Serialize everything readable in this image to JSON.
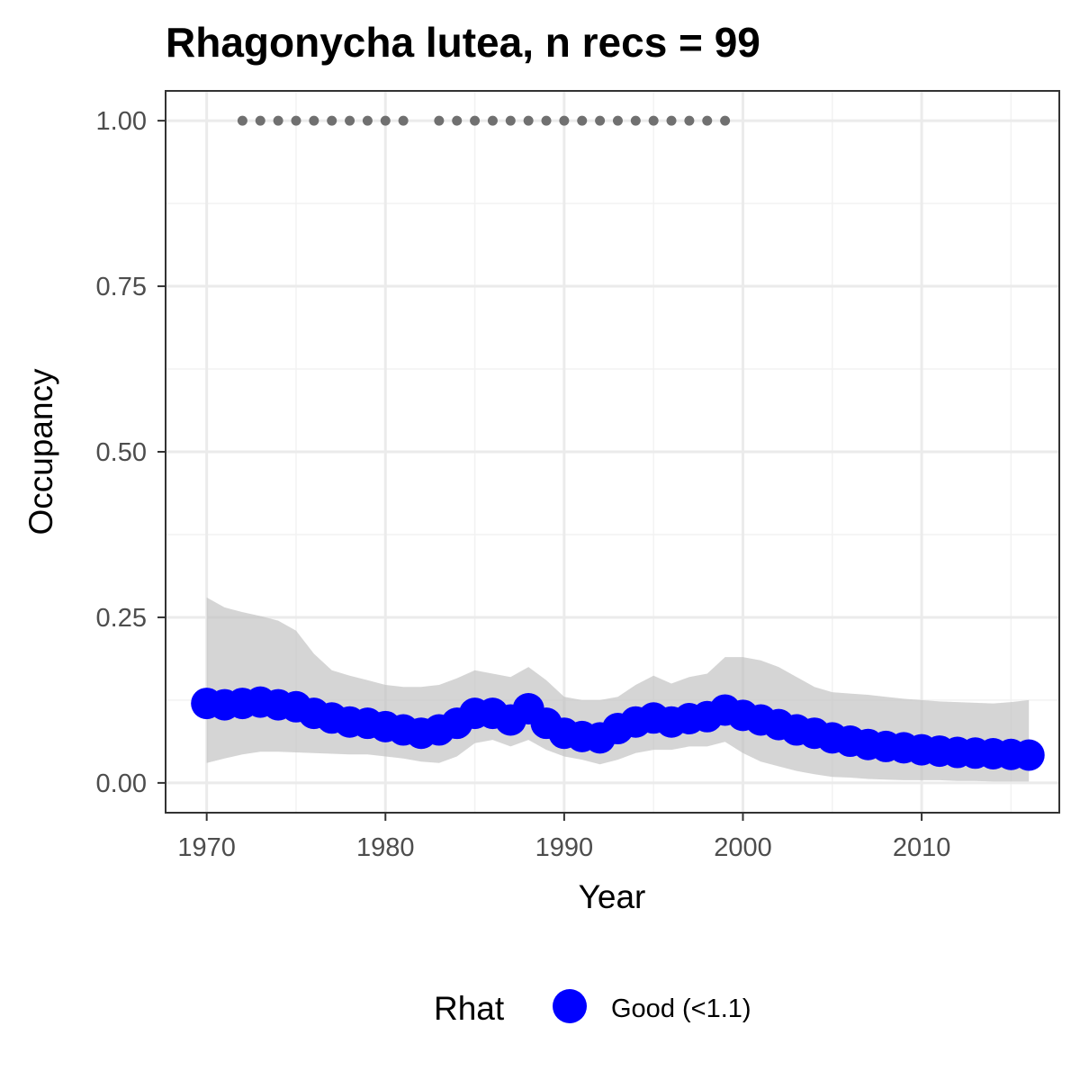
{
  "chart_data": {
    "type": "line",
    "title": "Rhagonycha lutea, n recs = 99",
    "xlabel": "Year",
    "ylabel": "Occupancy",
    "xlim": [
      1967.7,
      2017.7
    ],
    "ylim": [
      -0.045,
      1.045
    ],
    "x_ticks": [
      {
        "value": 1970,
        "label": "1970"
      },
      {
        "value": 1980,
        "label": "1980"
      },
      {
        "value": 1990,
        "label": "1990"
      },
      {
        "value": 2000,
        "label": "2000"
      },
      {
        "value": 2010,
        "label": "2010"
      }
    ],
    "y_ticks": [
      {
        "value": 0.0,
        "label": "0.00"
      },
      {
        "value": 0.25,
        "label": "0.25"
      },
      {
        "value": 0.5,
        "label": "0.50"
      },
      {
        "value": 0.75,
        "label": "0.75"
      },
      {
        "value": 1.0,
        "label": "1.00"
      }
    ],
    "grid": true,
    "legend": {
      "title": "Rhat",
      "position": "bottom",
      "entries": [
        {
          "label": "Good (<1.1)",
          "color": "#0000ff"
        }
      ]
    },
    "series": [
      {
        "name": "Good (<1.1)",
        "color": "#0000ff",
        "x": [
          1970,
          1971,
          1972,
          1973,
          1974,
          1975,
          1976,
          1977,
          1978,
          1979,
          1980,
          1981,
          1982,
          1983,
          1984,
          1985,
          1986,
          1987,
          1988,
          1989,
          1990,
          1991,
          1992,
          1993,
          1994,
          1995,
          1996,
          1997,
          1998,
          1999,
          2000,
          2001,
          2002,
          2003,
          2004,
          2005,
          2006,
          2007,
          2008,
          2009,
          2010,
          2011,
          2012,
          2013,
          2014,
          2015,
          2016
        ],
        "mean": [
          0.12,
          0.118,
          0.12,
          0.122,
          0.118,
          0.115,
          0.105,
          0.098,
          0.092,
          0.09,
          0.085,
          0.08,
          0.075,
          0.08,
          0.09,
          0.105,
          0.105,
          0.095,
          0.112,
          0.09,
          0.075,
          0.07,
          0.068,
          0.082,
          0.092,
          0.098,
          0.092,
          0.097,
          0.1,
          0.11,
          0.102,
          0.095,
          0.088,
          0.08,
          0.075,
          0.068,
          0.063,
          0.058,
          0.055,
          0.053,
          0.05,
          0.048,
          0.046,
          0.045,
          0.044,
          0.043,
          0.042
        ],
        "lower": [
          0.03,
          0.037,
          0.043,
          0.047,
          0.047,
          0.046,
          0.045,
          0.044,
          0.043,
          0.043,
          0.04,
          0.037,
          0.032,
          0.03,
          0.04,
          0.06,
          0.065,
          0.055,
          0.065,
          0.05,
          0.04,
          0.035,
          0.028,
          0.035,
          0.045,
          0.05,
          0.05,
          0.055,
          0.055,
          0.062,
          0.045,
          0.032,
          0.025,
          0.018,
          0.013,
          0.009,
          0.008,
          0.006,
          0.005,
          0.004,
          0.004,
          0.004,
          0.003,
          0.003,
          0.002,
          0.002,
          0.002
        ],
        "upper": [
          0.28,
          0.265,
          0.258,
          0.252,
          0.245,
          0.23,
          0.195,
          0.17,
          0.162,
          0.155,
          0.148,
          0.145,
          0.145,
          0.148,
          0.158,
          0.17,
          0.165,
          0.16,
          0.175,
          0.155,
          0.13,
          0.125,
          0.125,
          0.13,
          0.148,
          0.162,
          0.15,
          0.16,
          0.165,
          0.19,
          0.19,
          0.185,
          0.175,
          0.16,
          0.145,
          0.137,
          0.135,
          0.133,
          0.13,
          0.127,
          0.125,
          0.123,
          0.122,
          0.121,
          0.12,
          0.122,
          0.125
        ]
      },
      {
        "name": "",
        "color": "#707070",
        "type": "scatter",
        "x": [
          1972,
          1973,
          1974,
          1975,
          1976,
          1977,
          1978,
          1979,
          1980,
          1981,
          1983,
          1984,
          1985,
          1986,
          1987,
          1988,
          1989,
          1990,
          1991,
          1992,
          1993,
          1994,
          1995,
          1996,
          1997,
          1998,
          1999
        ],
        "y": [
          1,
          1,
          1,
          1,
          1,
          1,
          1,
          1,
          1,
          1,
          1,
          1,
          1,
          1,
          1,
          1,
          1,
          1,
          1,
          1,
          1,
          1,
          1,
          1,
          1,
          1,
          1
        ]
      }
    ]
  }
}
